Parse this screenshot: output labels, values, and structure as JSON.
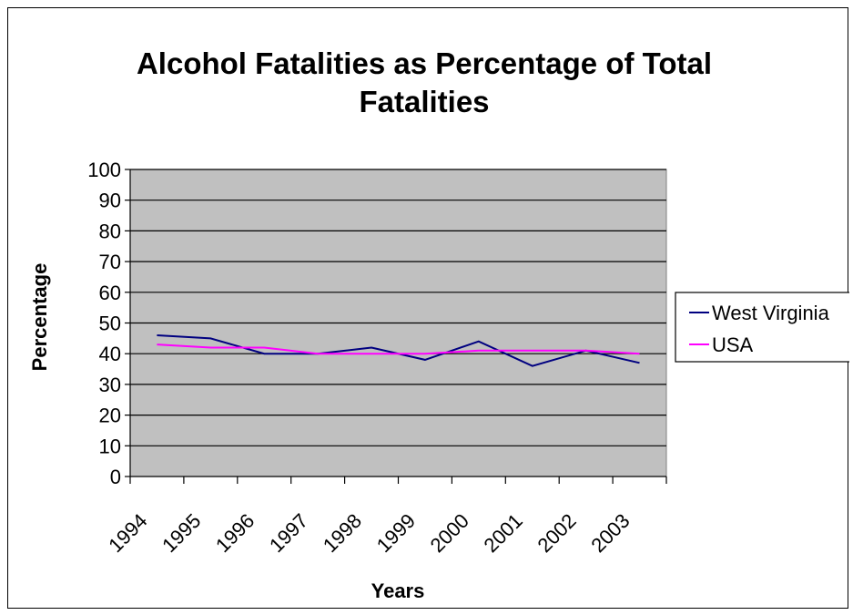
{
  "chart_data": {
    "type": "line",
    "title_lines": [
      "Alcohol Fatalities as Percentage of Total",
      "Fatalities"
    ],
    "xlabel": "Years",
    "ylabel": "Percentage",
    "categories": [
      "1994",
      "1995",
      "1996",
      "1997",
      "1998",
      "1999",
      "2000",
      "2001",
      "2002",
      "2003"
    ],
    "ylim": [
      0,
      100
    ],
    "yticks": [
      0,
      10,
      20,
      30,
      40,
      50,
      60,
      70,
      80,
      90,
      100
    ],
    "grid": "horizontal",
    "plot_background": "#c0c0c0",
    "legend_position": "right",
    "series": [
      {
        "name": "West Virginia",
        "color": "#000080",
        "values": [
          46,
          45,
          40,
          40,
          42,
          38,
          44,
          36,
          41,
          37
        ]
      },
      {
        "name": "USA",
        "color": "#ff00ff",
        "values": [
          43,
          42,
          42,
          40,
          40,
          40,
          41,
          41,
          41,
          40
        ]
      }
    ]
  }
}
